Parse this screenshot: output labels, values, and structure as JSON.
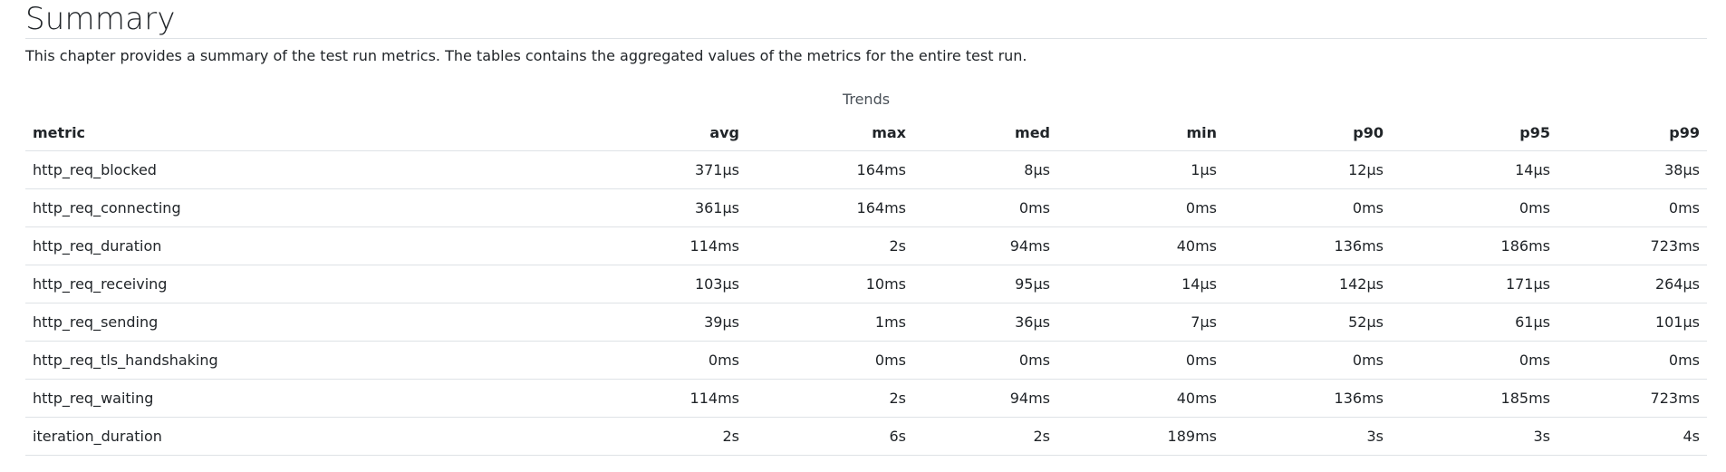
{
  "summary": {
    "title": "Summary",
    "intro": "This chapter provides a summary of the test run metrics. The tables contains the aggregated values of the metrics for the entire test run."
  },
  "trends": {
    "caption": "Trends",
    "columns": [
      "metric",
      "avg",
      "max",
      "med",
      "min",
      "p90",
      "p95",
      "p99"
    ],
    "rows": [
      [
        "http_req_blocked",
        "371µs",
        "164ms",
        "8µs",
        "1µs",
        "12µs",
        "14µs",
        "38µs"
      ],
      [
        "http_req_connecting",
        "361µs",
        "164ms",
        "0ms",
        "0ms",
        "0ms",
        "0ms",
        "0ms"
      ],
      [
        "http_req_duration",
        "114ms",
        "2s",
        "94ms",
        "40ms",
        "136ms",
        "186ms",
        "723ms"
      ],
      [
        "http_req_receiving",
        "103µs",
        "10ms",
        "95µs",
        "14µs",
        "142µs",
        "171µs",
        "264µs"
      ],
      [
        "http_req_sending",
        "39µs",
        "1ms",
        "36µs",
        "7µs",
        "52µs",
        "61µs",
        "101µs"
      ],
      [
        "http_req_tls_handshaking",
        "0ms",
        "0ms",
        "0ms",
        "0ms",
        "0ms",
        "0ms",
        "0ms"
      ],
      [
        "http_req_waiting",
        "114ms",
        "2s",
        "94ms",
        "40ms",
        "136ms",
        "185ms",
        "723ms"
      ],
      [
        "iteration_duration",
        "2s",
        "6s",
        "2s",
        "189ms",
        "3s",
        "3s",
        "4s"
      ]
    ]
  }
}
